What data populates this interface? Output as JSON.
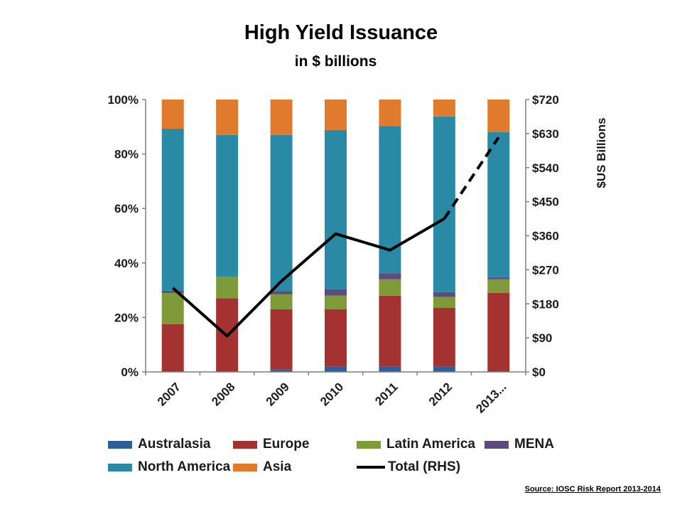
{
  "title": "High Yield Issuance",
  "subtitle": "in $ billions",
  "source": "Source:  IOSC Risk Report 2013-2014",
  "chart_data": {
    "type": "bar",
    "stacked": true,
    "percent_stacked": true,
    "categories": [
      "2007",
      "2008",
      "2009",
      "2010",
      "2011",
      "2012",
      "2013..."
    ],
    "series": [
      {
        "name": "Australasia",
        "color": "#2e5f9a",
        "values": [
          0,
          0,
          1,
          2,
          2,
          2,
          0
        ]
      },
      {
        "name": "Europe",
        "color": "#a33230",
        "values": [
          17.5,
          27,
          22,
          21,
          26,
          21.5,
          29
        ]
      },
      {
        "name": "Latin America",
        "color": "#7f9a3a",
        "values": [
          11.5,
          8,
          5.5,
          5,
          6,
          4,
          5
        ]
      },
      {
        "name": "MENA",
        "color": "#604a7b",
        "values": [
          0.8,
          0,
          1.2,
          2.3,
          2.2,
          1.8,
          0.6
        ]
      },
      {
        "name": "North America",
        "color": "#2a8aa6",
        "values": [
          59.5,
          52,
          57.3,
          58.5,
          54,
          64.5,
          53.4
        ]
      },
      {
        "name": "Asia",
        "color": "#e07b2e",
        "values": [
          10.7,
          13,
          13,
          11.2,
          9.8,
          6.2,
          12
        ]
      }
    ],
    "line_series": {
      "name": "Total (RHS)",
      "color": "#000000",
      "values": [
        222,
        95,
        240,
        365,
        322,
        405,
        620
      ],
      "dashed_from_index": 5
    },
    "ylim": [
      0,
      100
    ],
    "y_ticks": [
      "0%",
      "20%",
      "40%",
      "60%",
      "80%",
      "100%"
    ],
    "y_tick_values": [
      0,
      20,
      40,
      60,
      80,
      100
    ],
    "y2lim": [
      0,
      720
    ],
    "y2_ticks": [
      "$0",
      "$90",
      "$180",
      "$270",
      "$360",
      "$450",
      "$540",
      "$630",
      "$720"
    ],
    "y2_tick_values": [
      0,
      90,
      180,
      270,
      360,
      450,
      540,
      630,
      720
    ],
    "y2label": "$US Billions",
    "legend": "bottom"
  },
  "legend": [
    {
      "label": "Australasia",
      "color": "#2e5f9a",
      "kind": "bar"
    },
    {
      "label": "Europe",
      "color": "#a33230",
      "kind": "bar"
    },
    {
      "label": "Latin America",
      "color": "#7f9a3a",
      "kind": "bar"
    },
    {
      "label": "MENA",
      "color": "#604a7b",
      "kind": "bar"
    },
    {
      "label": "North America",
      "color": "#2a8aa6",
      "kind": "bar"
    },
    {
      "label": "Asia",
      "color": "#e07b2e",
      "kind": "bar"
    },
    {
      "label": "Total (RHS)",
      "color": "#000000",
      "kind": "line"
    }
  ]
}
